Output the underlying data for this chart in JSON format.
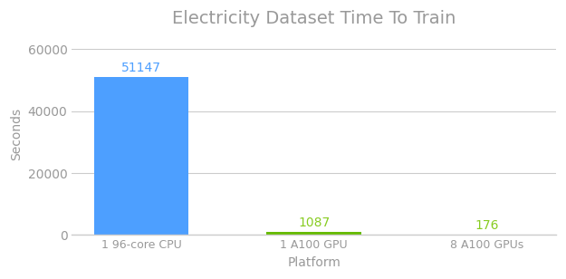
{
  "title": "Electricity Dataset Time To Train",
  "xlabel": "Platform",
  "ylabel": "Seconds",
  "categories": [
    "1 96-core CPU",
    "1 A100 GPU",
    "8 A100 GPUs"
  ],
  "values": [
    51147,
    1087,
    176
  ],
  "bar_colors": [
    "#4d9fff",
    "#66bb00",
    "#66bb00"
  ],
  "label_colors": [
    "#4d9fff",
    "#88cc22",
    "#88cc22"
  ],
  "ylim": [
    0,
    65000
  ],
  "yticks": [
    0,
    20000,
    40000,
    60000
  ],
  "background_color": "#ffffff",
  "grid_color": "#cccccc",
  "title_color": "#999999",
  "axis_label_color": "#999999",
  "tick_label_color": "#999999",
  "title_fontsize": 14,
  "label_fontsize": 10,
  "tick_fontsize": 9,
  "value_label_fontsize": 10,
  "bar_width": 0.55
}
